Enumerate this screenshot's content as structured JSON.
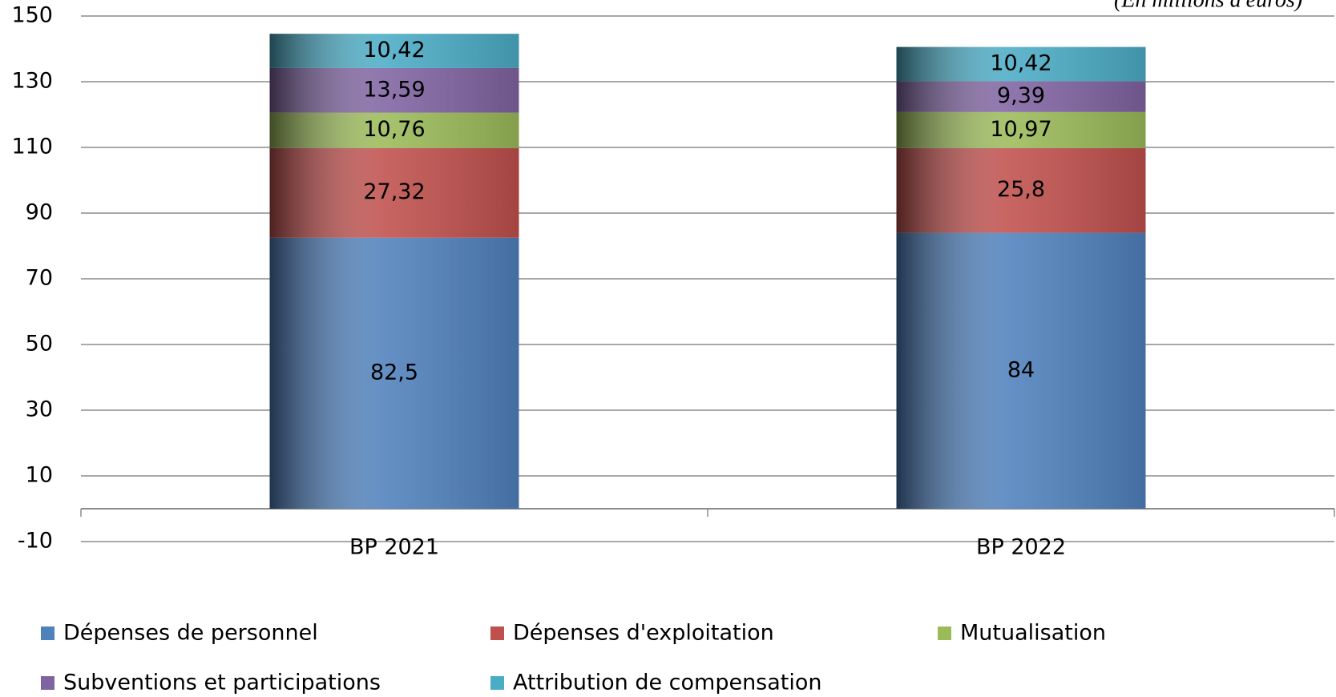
{
  "chart_data": {
    "type": "stacked_bar",
    "subtitle": "(En millions d'euros)",
    "categories": [
      "BP 2021",
      "BP 2022"
    ],
    "series": [
      {
        "name": "Dépenses de personnel",
        "color": "#4f81bd",
        "values": [
          82.5,
          84
        ],
        "value_labels": [
          "82,5",
          "84"
        ]
      },
      {
        "name": "Dépenses d'exploitation",
        "color": "#c0504d",
        "values": [
          27.32,
          25.8
        ],
        "value_labels": [
          "27,32",
          "25,8"
        ]
      },
      {
        "name": "Mutualisation",
        "color": "#9bbb59",
        "values": [
          10.76,
          10.97
        ],
        "value_labels": [
          "10,76",
          "10,97"
        ]
      },
      {
        "name": "Subventions et participations",
        "color": "#8064a2",
        "values": [
          13.59,
          9.39
        ],
        "value_labels": [
          "13,59",
          "9,39"
        ]
      },
      {
        "name": "Attribution de compensation",
        "color": "#4bacc6",
        "values": [
          10.42,
          10.42
        ],
        "value_labels": [
          "10,42",
          "10,42"
        ]
      }
    ],
    "ylim": [
      -10,
      150
    ],
    "yticks": [
      -10,
      10,
      30,
      50,
      70,
      90,
      110,
      130,
      150
    ],
    "grid": true,
    "legend": "bottom"
  }
}
